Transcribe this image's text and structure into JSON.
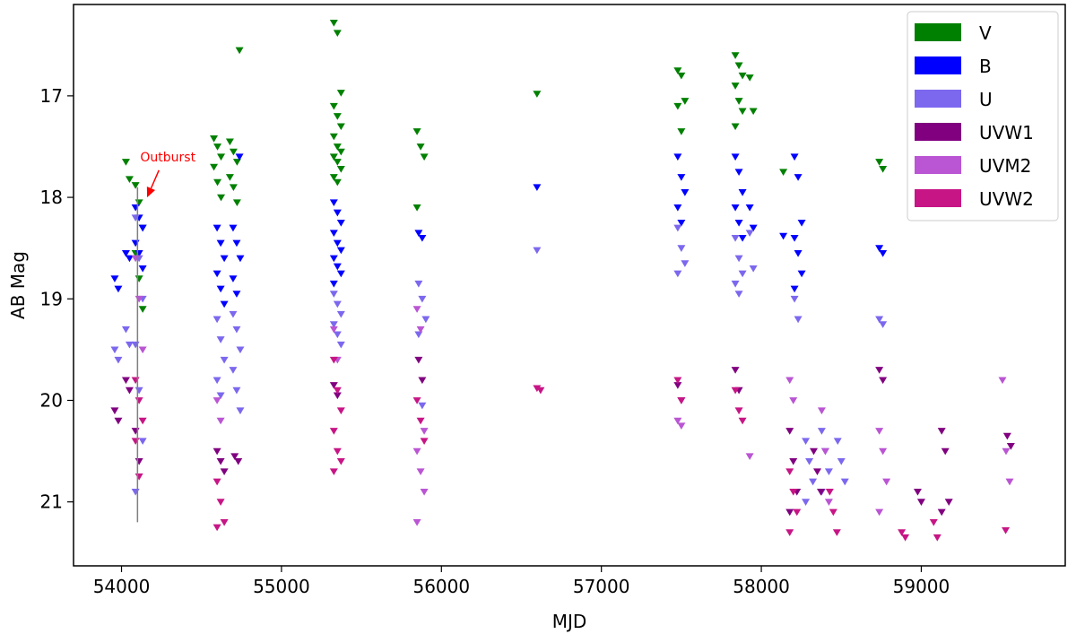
{
  "chart_data": {
    "type": "scatter",
    "title": "",
    "xlabel": "MJD",
    "ylabel": "AB Mag",
    "xlim": [
      53700,
      59900
    ],
    "ylim": [
      21.63,
      16.1
    ],
    "y_inverted": true,
    "x_ticks": [
      54000,
      55000,
      56000,
      57000,
      58000,
      59000
    ],
    "x_tick_labels": [
      "54000",
      "55000",
      "56000",
      "57000",
      "58000",
      "59000"
    ],
    "y_ticks": [
      17,
      18,
      19,
      20,
      21
    ],
    "y_tick_labels": [
      "17",
      "18",
      "19",
      "20",
      "21"
    ],
    "grid": false,
    "legend_position": "top-right",
    "marker": "downward-triangle (upper limit)",
    "annotation": {
      "text": "Outburst",
      "x_text": 54290,
      "y_text": 17.75,
      "x_arrow": 54160,
      "y_arrow": 18.0,
      "color": "#ff0000"
    },
    "errorbar": {
      "x": 54100,
      "y_min": 17.9,
      "y_max": 21.2,
      "color": "#808080"
    },
    "series": [
      {
        "name": "V",
        "color": "#008000",
        "marker": "triangle-down",
        "clusters": [
          {
            "x": 54050,
            "y": [
              17.65,
              17.82
            ]
          },
          {
            "x": 54110,
            "y": [
              17.88,
              18.05,
              18.3,
              18.55,
              18.8,
              19.1
            ]
          },
          {
            "x": 54600,
            "y": [
              17.42,
              17.5,
              17.6,
              17.7,
              17.85,
              18.0
            ]
          },
          {
            "x": 54700,
            "y": [
              17.45,
              17.55,
              17.65,
              17.8,
              17.9,
              18.05
            ]
          },
          {
            "x": 54760,
            "y": [
              16.55
            ]
          },
          {
            "x": 55350,
            "y": [
              16.28,
              16.38,
              16.97,
              17.1,
              17.2,
              17.3,
              17.4,
              17.5,
              17.55,
              17.6,
              17.65,
              17.72,
              17.8,
              17.85
            ]
          },
          {
            "x": 55870,
            "y": [
              17.35,
              17.5,
              17.6,
              18.1
            ]
          },
          {
            "x": 56620,
            "y": [
              16.98
            ]
          },
          {
            "x": 57500,
            "y": [
              16.75,
              16.8,
              17.05,
              17.1,
              17.35
            ]
          },
          {
            "x": 57860,
            "y": [
              16.6,
              16.7,
              16.8,
              16.9,
              17.05,
              17.15,
              17.3
            ]
          },
          {
            "x": 57950,
            "y": [
              16.82,
              17.15
            ]
          },
          {
            "x": 58160,
            "y": [
              17.75
            ]
          },
          {
            "x": 58760,
            "y": [
              17.65,
              17.72
            ]
          }
        ]
      },
      {
        "name": "B",
        "color": "#0000ff",
        "marker": "triangle-down",
        "clusters": [
          {
            "x": 53980,
            "y": [
              18.8,
              18.9
            ]
          },
          {
            "x": 54050,
            "y": [
              18.55,
              18.6
            ]
          },
          {
            "x": 54110,
            "y": [
              18.1,
              18.2,
              18.3,
              18.45,
              18.55,
              18.7
            ]
          },
          {
            "x": 54620,
            "y": [
              18.3,
              18.45,
              18.6,
              18.75,
              18.9,
              19.05
            ]
          },
          {
            "x": 54720,
            "y": [
              18.3,
              18.45,
              18.6,
              18.8,
              18.95
            ]
          },
          {
            "x": 54760,
            "y": [
              17.6
            ]
          },
          {
            "x": 55350,
            "y": [
              18.05,
              18.15,
              18.25,
              18.35,
              18.45,
              18.52,
              18.6,
              18.68,
              18.75,
              18.85
            ]
          },
          {
            "x": 55880,
            "y": [
              18.35,
              18.4
            ]
          },
          {
            "x": 56620,
            "y": [
              17.9
            ]
          },
          {
            "x": 57500,
            "y": [
              17.6,
              17.8,
              17.95,
              18.1,
              18.25
            ]
          },
          {
            "x": 57860,
            "y": [
              17.6,
              17.75,
              17.95,
              18.1,
              18.25,
              18.4
            ]
          },
          {
            "x": 57950,
            "y": [
              18.1,
              18.3
            ]
          },
          {
            "x": 58160,
            "y": [
              18.38
            ]
          },
          {
            "x": 58230,
            "y": [
              17.6,
              17.8,
              18.25,
              18.4,
              18.55,
              18.75,
              18.9
            ]
          },
          {
            "x": 58760,
            "y": [
              18.5,
              18.55
            ]
          }
        ]
      },
      {
        "name": "U",
        "color": "#7b68ee",
        "marker": "triangle-down",
        "clusters": [
          {
            "x": 53980,
            "y": [
              19.5,
              19.6
            ]
          },
          {
            "x": 54050,
            "y": [
              19.3,
              19.45
            ]
          },
          {
            "x": 54110,
            "y": [
              18.2,
              18.6,
              19.0,
              19.45,
              19.9,
              20.4,
              20.9
            ]
          },
          {
            "x": 54620,
            "y": [
              19.2,
              19.4,
              19.6,
              19.8,
              19.95
            ]
          },
          {
            "x": 54720,
            "y": [
              19.15,
              19.3,
              19.5,
              19.7,
              19.9,
              20.1
            ]
          },
          {
            "x": 55350,
            "y": [
              18.95,
              19.05,
              19.15,
              19.25,
              19.35,
              19.45
            ]
          },
          {
            "x": 55880,
            "y": [
              18.85,
              19.0,
              19.2,
              19.35,
              20.05
            ]
          },
          {
            "x": 56620,
            "y": [
              18.52
            ]
          },
          {
            "x": 57500,
            "y": [
              18.3,
              18.5,
              18.65,
              18.75
            ]
          },
          {
            "x": 57860,
            "y": [
              18.4,
              18.6,
              18.75,
              18.85,
              18.95
            ]
          },
          {
            "x": 57950,
            "y": [
              18.35,
              18.7
            ]
          },
          {
            "x": 58230,
            "y": [
              19.0,
              19.2
            ]
          },
          {
            "x": 58300,
            "y": [
              20.4,
              20.6,
              20.8,
              21.0
            ]
          },
          {
            "x": 58400,
            "y": [
              20.3,
              20.5,
              20.7,
              20.9
            ]
          },
          {
            "x": 58500,
            "y": [
              20.4,
              20.6,
              20.8
            ]
          },
          {
            "x": 58760,
            "y": [
              19.2,
              19.25
            ]
          }
        ]
      },
      {
        "name": "UVW1",
        "color": "#800080",
        "marker": "triangle-down",
        "clusters": [
          {
            "x": 53980,
            "y": [
              20.1,
              20.2
            ]
          },
          {
            "x": 54050,
            "y": [
              19.8,
              19.9
            ]
          },
          {
            "x": 54110,
            "y": [
              20.3,
              20.6
            ]
          },
          {
            "x": 54620,
            "y": [
              20.5,
              20.6,
              20.7
            ]
          },
          {
            "x": 54730,
            "y": [
              20.55,
              20.6
            ]
          },
          {
            "x": 55350,
            "y": [
              19.85,
              19.95
            ]
          },
          {
            "x": 55880,
            "y": [
              19.6,
              19.8
            ]
          },
          {
            "x": 57500,
            "y": [
              19.85,
              20.0
            ]
          },
          {
            "x": 57860,
            "y": [
              19.7,
              19.9
            ]
          },
          {
            "x": 58200,
            "y": [
              20.3,
              20.6,
              20.9,
              21.1
            ]
          },
          {
            "x": 58350,
            "y": [
              20.5,
              20.7,
              20.9
            ]
          },
          {
            "x": 58760,
            "y": [
              19.7,
              19.8
            ]
          },
          {
            "x": 59000,
            "y": [
              20.9,
              21.0
            ]
          },
          {
            "x": 59150,
            "y": [
              20.3,
              20.5,
              21.0,
              21.1
            ]
          },
          {
            "x": 59560,
            "y": [
              20.35,
              20.45
            ]
          }
        ]
      },
      {
        "name": "UVM2",
        "color": "#ba55d3",
        "marker": "triangle-down",
        "clusters": [
          {
            "x": 54110,
            "y": [
              18.6,
              19.0,
              19.5
            ]
          },
          {
            "x": 54620,
            "y": [
              20.0,
              20.2
            ]
          },
          {
            "x": 55350,
            "y": [
              19.3,
              19.6
            ]
          },
          {
            "x": 55870,
            "y": [
              19.1,
              19.3,
              20.3,
              20.5,
              20.7,
              20.9,
              21.2
            ]
          },
          {
            "x": 57500,
            "y": [
              20.2,
              20.25
            ]
          },
          {
            "x": 57950,
            "y": [
              20.55
            ]
          },
          {
            "x": 58200,
            "y": [
              19.8,
              20.0
            ]
          },
          {
            "x": 58400,
            "y": [
              20.1,
              20.5,
              21.0
            ]
          },
          {
            "x": 58760,
            "y": [
              20.3,
              20.5,
              20.8,
              21.1
            ]
          },
          {
            "x": 59530,
            "y": [
              19.8,
              20.5,
              20.8
            ]
          }
        ]
      },
      {
        "name": "UVW2",
        "color": "#c71585",
        "marker": "triangle-down",
        "clusters": [
          {
            "x": 54110,
            "y": [
              19.8,
              20.0,
              20.2,
              20.4,
              20.75
            ]
          },
          {
            "x": 54620,
            "y": [
              20.8,
              21.0,
              21.2,
              21.25
            ]
          },
          {
            "x": 55350,
            "y": [
              19.6,
              19.9,
              20.1,
              20.3,
              20.5,
              20.6,
              20.7
            ]
          },
          {
            "x": 55870,
            "y": [
              20.0,
              20.2,
              20.4
            ]
          },
          {
            "x": 56620,
            "y": [
              19.88,
              19.9
            ]
          },
          {
            "x": 57500,
            "y": [
              19.8,
              20.0
            ]
          },
          {
            "x": 57860,
            "y": [
              19.9,
              20.1,
              20.2
            ]
          },
          {
            "x": 58200,
            "y": [
              20.7,
              20.9,
              21.1,
              21.3
            ]
          },
          {
            "x": 58450,
            "y": [
              20.9,
              21.1,
              21.3
            ]
          },
          {
            "x": 58900,
            "y": [
              21.3,
              21.35
            ]
          },
          {
            "x": 59100,
            "y": [
              21.2,
              21.35
            ]
          },
          {
            "x": 59550,
            "y": [
              21.28
            ]
          }
        ]
      }
    ]
  }
}
